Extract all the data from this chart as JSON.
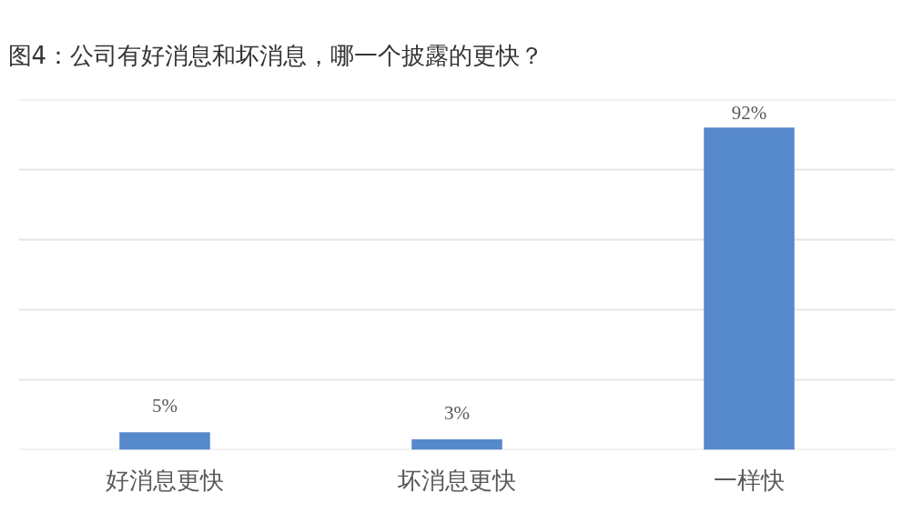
{
  "chart_data": {
    "type": "bar",
    "title": "图4：公司有好消息和坏消息，哪一个披露的更快？",
    "categories": [
      "好消息更快",
      "坏消息更快",
      "一样快"
    ],
    "values": [
      5,
      3,
      92
    ],
    "value_labels": [
      "5%",
      "3%",
      "92%"
    ],
    "color": "#5688cc",
    "ylim": [
      0,
      100
    ],
    "yticks": [
      {
        "value": 0,
        "label": null
      },
      {
        "value": 20,
        "label": null
      },
      {
        "value": 40,
        "label": null
      },
      {
        "value": 60,
        "label": null
      },
      {
        "value": 80,
        "label": null
      },
      {
        "value": 100,
        "label": null
      }
    ],
    "grid": "y",
    "tick_labels": "x"
  }
}
